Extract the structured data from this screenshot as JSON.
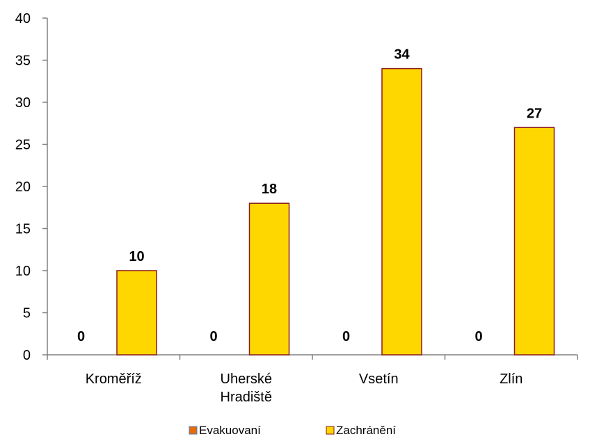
{
  "chart_data": {
    "type": "bar",
    "title": "",
    "xlabel": "",
    "ylabel": "",
    "ylim": [
      0,
      40
    ],
    "ytick_step": 5,
    "categories": [
      "Kroměříž",
      "Uherské Hradiště",
      "Vsetín",
      "Zlín"
    ],
    "series": [
      {
        "name": "Evakuovaní",
        "values": [
          0,
          0,
          0,
          0
        ],
        "color": "#E46C0A",
        "border": "#4F81BD"
      },
      {
        "name": "Zachránění",
        "values": [
          10,
          18,
          34,
          27
        ],
        "color": "#FFD700",
        "border": "#8B1A1A"
      }
    ],
    "data_labels": true,
    "grid": false,
    "legend": "bottom"
  }
}
